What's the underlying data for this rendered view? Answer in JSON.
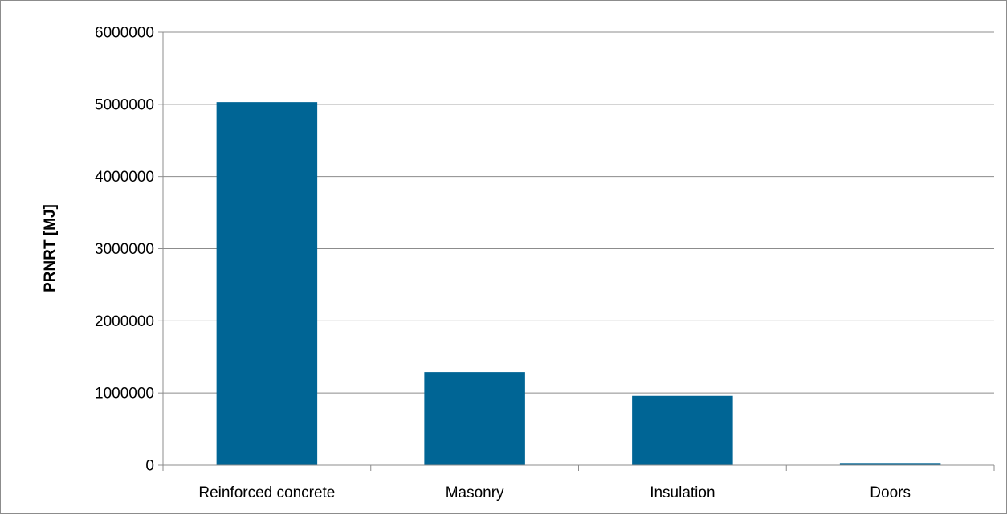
{
  "chart_data": {
    "type": "bar",
    "title": "",
    "xlabel": "",
    "ylabel": "PRNRT [MJ]",
    "categories": [
      "Reinforced concrete",
      "Masonry",
      "Insulation",
      "Doors"
    ],
    "values": [
      5030000,
      1290000,
      960000,
      30000
    ],
    "ylim": [
      0,
      6000000
    ],
    "yticks": [
      "0",
      "1000000",
      "2000000",
      "3000000",
      "4000000",
      "5000000",
      "6000000"
    ],
    "grid": true,
    "legend": "none",
    "bar_color": "#006595",
    "grid_color": "#8c8c8c"
  }
}
